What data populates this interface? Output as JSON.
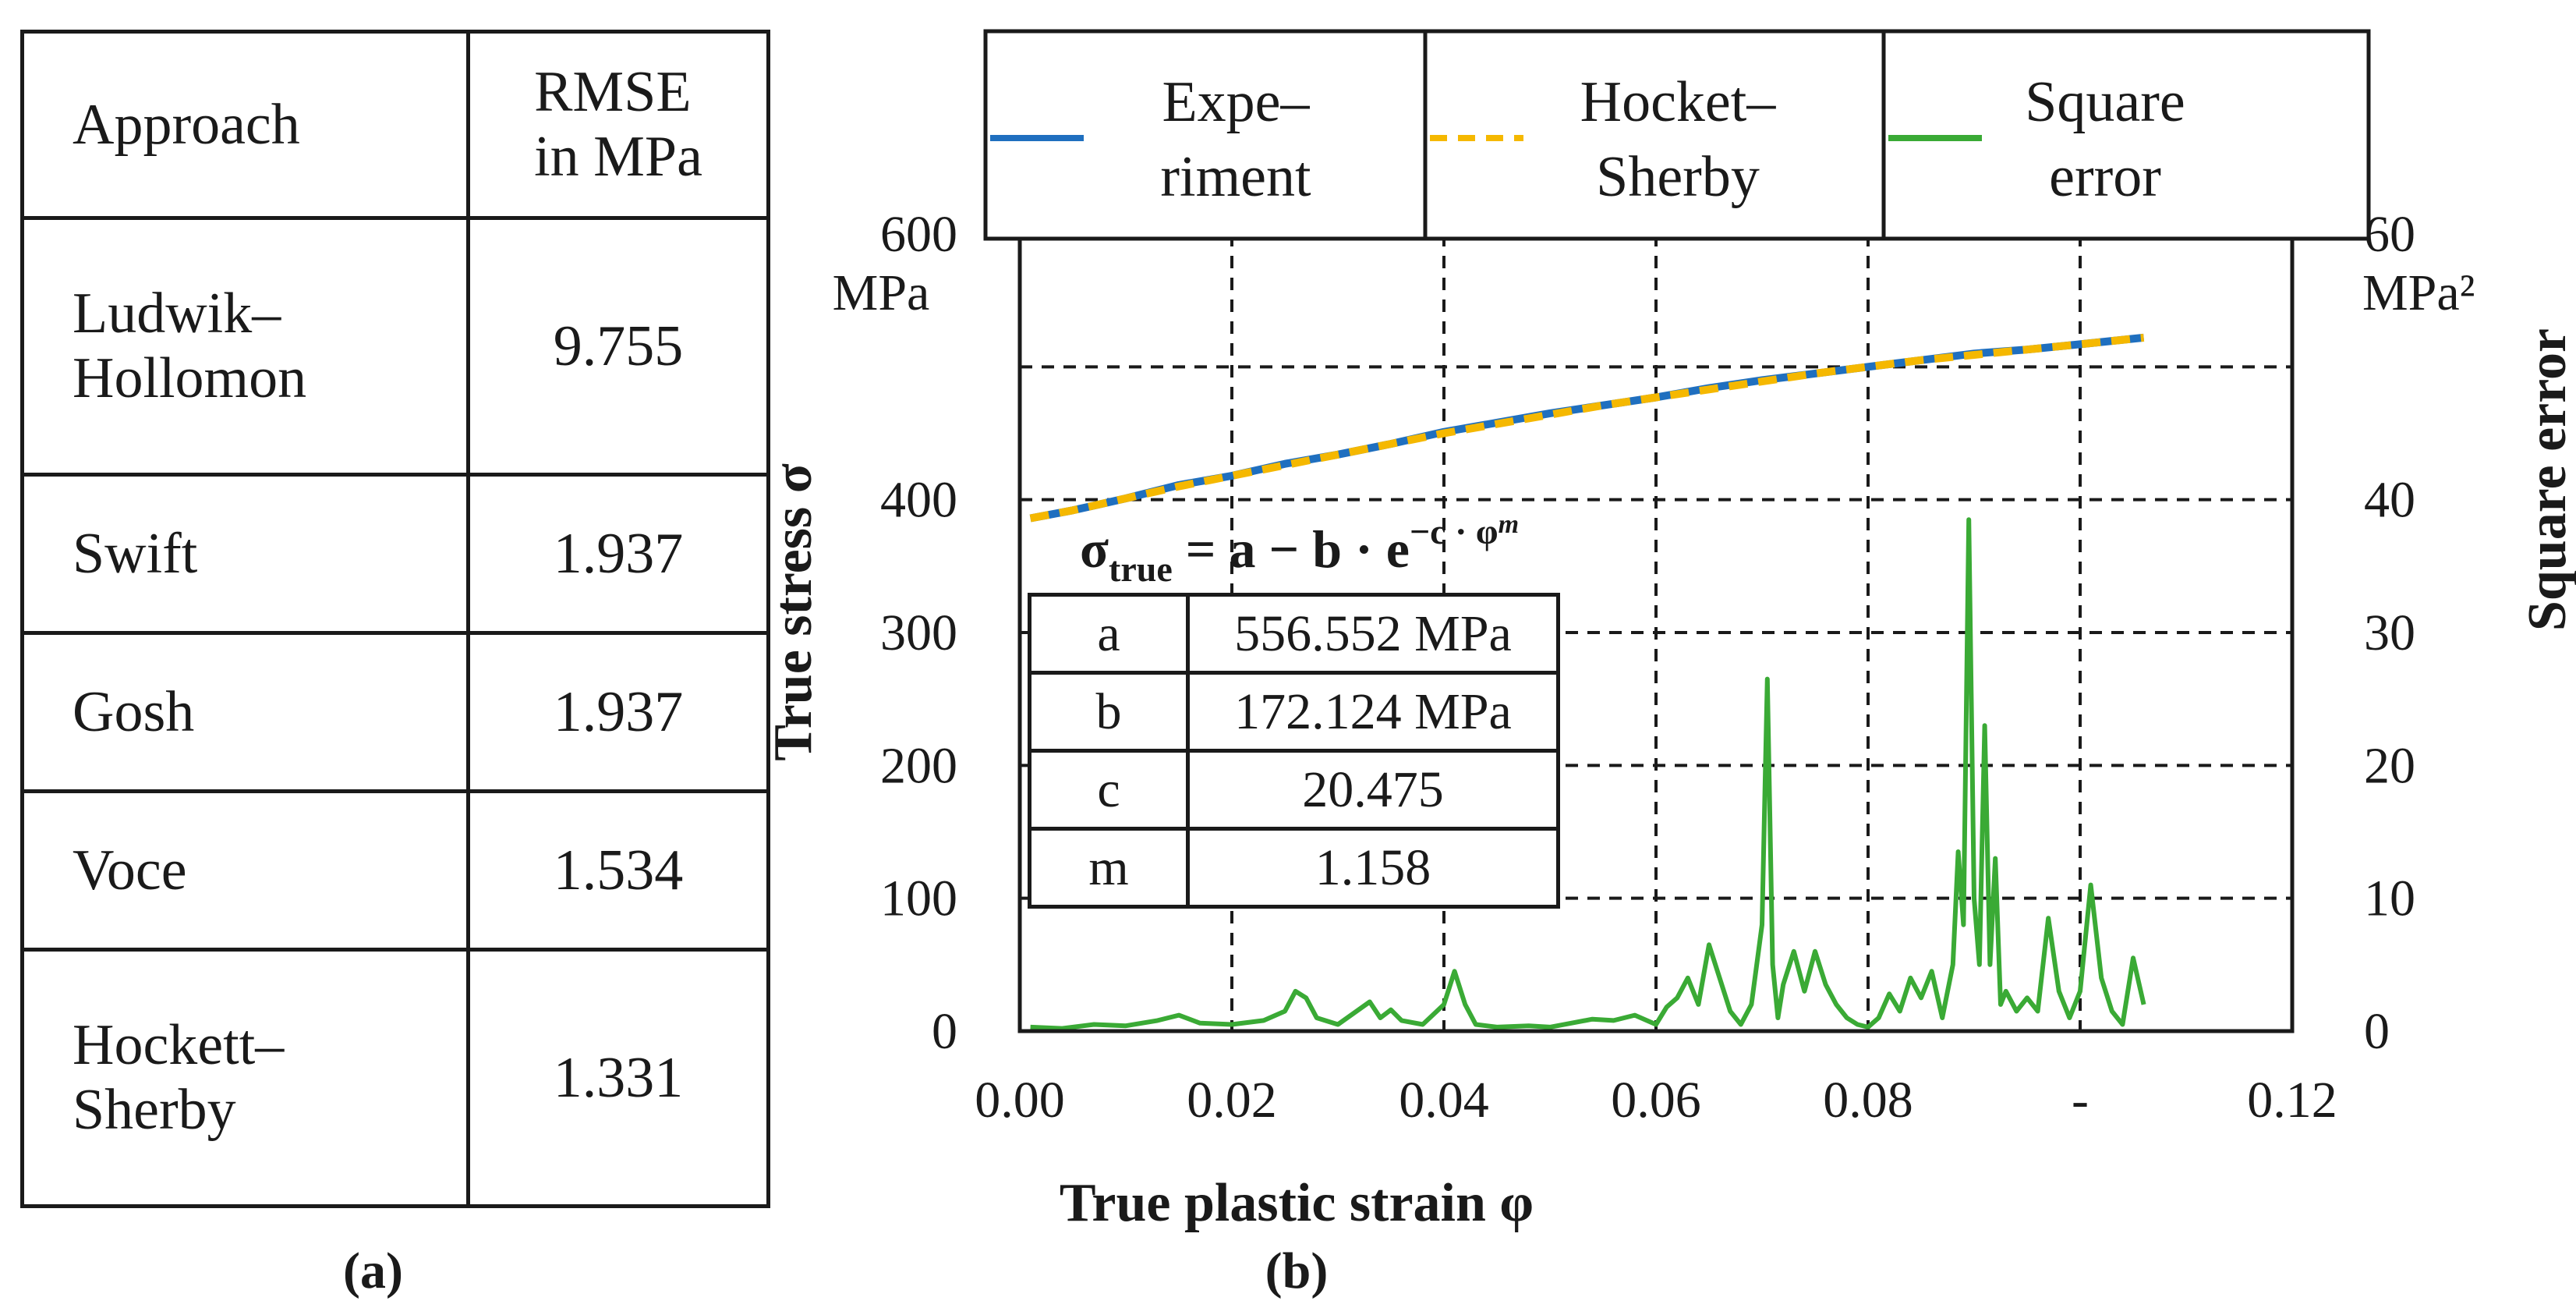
{
  "panel_a": {
    "label": "(a)",
    "headers": {
      "approach": "Approach",
      "rmse_line1": "RMSE",
      "rmse_line2": "in MPa"
    },
    "rows": [
      {
        "approach_line1": "Ludwik–",
        "approach_line2": "Hollomon",
        "rmse": "9.755"
      },
      {
        "approach_line1": "Swift",
        "approach_line2": "",
        "rmse": "1.937"
      },
      {
        "approach_line1": "Gosh",
        "approach_line2": "",
        "rmse": "1.937"
      },
      {
        "approach_line1": "Voce",
        "approach_line2": "",
        "rmse": "1.534"
      },
      {
        "approach_line1": "Hockett–",
        "approach_line2": "Sherby",
        "rmse": "1.331"
      }
    ]
  },
  "panel_b": {
    "label": "(b)",
    "equation": {
      "lhs": "σ",
      "sub": "true",
      "rhs": " = a − b · e",
      "exp": "−c · φ",
      "exp_sup": "m"
    },
    "parameters": [
      {
        "name": "a",
        "value": "556.552 MPa"
      },
      {
        "name": "b",
        "value": "172.124 MPa"
      },
      {
        "name": "c",
        "value": "20.475"
      },
      {
        "name": "m",
        "value": "1.158"
      }
    ],
    "left_unit": "MPa",
    "right_unit": "MPa²"
  },
  "chart_data": {
    "type": "line",
    "xlabel": "True plastic strain φ",
    "ylabel": "True stress σ",
    "y2label": "Square error",
    "xlim": [
      0.0,
      0.12
    ],
    "ylim": [
      0,
      600
    ],
    "y2lim": [
      0,
      60
    ],
    "xticks": [
      "0.00",
      "0.02",
      "0.04",
      "0.06",
      "0.08",
      "-",
      "0.12"
    ],
    "yticks": [
      "0",
      "100",
      "200",
      "300",
      "400",
      "",
      "600"
    ],
    "y2ticks": [
      "0",
      "10",
      "20",
      "30",
      "40",
      "",
      "60"
    ],
    "grid": true,
    "legend": "top",
    "colors": {
      "experiment": "#1f6fbf",
      "hockett_sherby": "#f5b800",
      "square_error": "#3aaa35"
    },
    "series": [
      {
        "name": "Expe–riment",
        "legend_line1": "Expe–",
        "legend_line2": "riment",
        "axis": "left",
        "style": "solid",
        "x": [
          0.001,
          0.005,
          0.01,
          0.015,
          0.02,
          0.025,
          0.03,
          0.035,
          0.04,
          0.045,
          0.05,
          0.055,
          0.06,
          0.065,
          0.07,
          0.075,
          0.08,
          0.085,
          0.09,
          0.095,
          0.1,
          0.106
        ],
        "y": [
          386,
          392,
          401,
          411,
          418,
          427,
          434,
          442,
          451,
          458,
          465,
          471,
          477,
          484,
          490,
          495,
          500,
          505,
          510,
          513,
          517,
          522
        ]
      },
      {
        "name": "Hocket–Sherby",
        "legend_line1": "Hocket–",
        "legend_line2": "Sherby",
        "axis": "left",
        "style": "dashed",
        "x": [
          0.001,
          0.005,
          0.01,
          0.015,
          0.02,
          0.025,
          0.03,
          0.035,
          0.04,
          0.045,
          0.05,
          0.055,
          0.06,
          0.065,
          0.07,
          0.075,
          0.08,
          0.085,
          0.09,
          0.095,
          0.1,
          0.106
        ],
        "y": [
          386,
          392,
          401,
          410,
          418,
          426,
          434,
          442,
          450,
          457,
          464,
          471,
          477,
          483,
          489,
          495,
          500,
          505,
          509,
          513,
          517,
          522
        ]
      },
      {
        "name": "Square error",
        "legend_line1": "Square",
        "legend_line2": "error",
        "axis": "right",
        "style": "solid",
        "x": [
          0.001,
          0.004,
          0.007,
          0.01,
          0.013,
          0.015,
          0.017,
          0.02,
          0.023,
          0.025,
          0.026,
          0.027,
          0.028,
          0.03,
          0.033,
          0.034,
          0.035,
          0.036,
          0.038,
          0.04,
          0.041,
          0.042,
          0.043,
          0.045,
          0.048,
          0.05,
          0.052,
          0.054,
          0.056,
          0.058,
          0.06,
          0.061,
          0.062,
          0.063,
          0.064,
          0.065,
          0.066,
          0.067,
          0.068,
          0.069,
          0.07,
          0.0705,
          0.071,
          0.0715,
          0.072,
          0.073,
          0.074,
          0.075,
          0.076,
          0.077,
          0.078,
          0.079,
          0.08,
          0.081,
          0.082,
          0.083,
          0.084,
          0.085,
          0.086,
          0.087,
          0.088,
          0.0885,
          0.089,
          0.0895,
          0.09,
          0.0905,
          0.091,
          0.0915,
          0.092,
          0.0925,
          0.093,
          0.094,
          0.095,
          0.096,
          0.097,
          0.098,
          0.099,
          0.1,
          0.101,
          0.102,
          0.103,
          0.104,
          0.105,
          0.106
        ],
        "y": [
          0.3,
          0.2,
          0.5,
          0.4,
          0.8,
          1.2,
          0.6,
          0.5,
          0.8,
          1.5,
          3.0,
          2.5,
          1.0,
          0.5,
          2.2,
          1.0,
          1.6,
          0.8,
          0.5,
          2.0,
          4.5,
          2.0,
          0.5,
          0.3,
          0.4,
          0.3,
          0.6,
          0.9,
          0.8,
          1.2,
          0.5,
          1.8,
          2.5,
          4.0,
          2.0,
          6.5,
          4.0,
          1.5,
          0.5,
          2.0,
          8.0,
          26.5,
          5.0,
          1.0,
          3.5,
          6.0,
          3.0,
          6.0,
          3.5,
          2.0,
          1.0,
          0.5,
          0.3,
          1.0,
          2.8,
          1.5,
          4.0,
          2.5,
          4.5,
          1.0,
          5.0,
          13.5,
          8.0,
          38.5,
          10.0,
          5.0,
          23.0,
          5.0,
          13.0,
          2.0,
          3.0,
          1.5,
          2.5,
          1.5,
          8.5,
          3.0,
          1.0,
          3.0,
          11.0,
          4.0,
          1.5,
          0.5,
          5.5,
          2.0
        ]
      }
    ]
  }
}
